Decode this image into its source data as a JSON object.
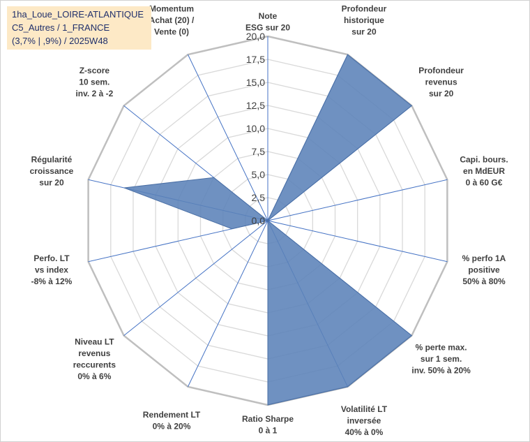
{
  "title_box": {
    "line1": "1ha_Loue_LOIRE-ATLANTIQUE",
    "line2": "C5_Autres / 1_FRANCE",
    "line3": "(3,7% | ,9%) / 2025W48"
  },
  "colors": {
    "series_fill": "#5b82b8",
    "series_stroke": "#4a6fa5",
    "spoke": "#4472c4",
    "grid": "#d9d9d9",
    "outer_ring": "#bfbfbf",
    "title_bg": "#fde9c6",
    "title_text": "#1f2f6b"
  },
  "chart_data": {
    "type": "radar",
    "rmin": 0,
    "rmax": 20,
    "ticks": [
      "0,0",
      "2,5",
      "5,0",
      "7,5",
      "10,0",
      "12,5",
      "15,0",
      "17,5",
      "20,0"
    ],
    "tick_values": [
      0,
      2.5,
      5,
      7.5,
      10,
      12.5,
      15,
      17.5,
      20
    ],
    "axes": [
      {
        "lines": [
          "Note",
          "ESG sur 20"
        ],
        "value": 0
      },
      {
        "lines": [
          "Profondeur",
          "historique",
          "sur 20"
        ],
        "value": 20
      },
      {
        "lines": [
          "Profondeur",
          "revenus",
          "sur 20"
        ],
        "value": 20
      },
      {
        "lines": [
          "Capi. bours.",
          "en MdEUR",
          "0 à 60 G€"
        ],
        "value": 0
      },
      {
        "lines": [
          "% perfo 1A",
          "positive",
          "50% à 80%"
        ],
        "value": 0
      },
      {
        "lines": [
          "% perte max.",
          "sur 1 sem.",
          "inv. 50% à 20%"
        ],
        "value": 20
      },
      {
        "lines": [
          "Volatilité LT",
          "inversée",
          "40% à 0%"
        ],
        "value": 20
      },
      {
        "lines": [
          "Ratio Sharpe",
          "0 à 1"
        ],
        "value": 20
      },
      {
        "lines": [
          "Rendement LT",
          "0% à 20%"
        ],
        "value": 0
      },
      {
        "lines": [
          "Niveau LT",
          "revenus",
          "reccurents",
          "0% à 6%"
        ],
        "value": 0
      },
      {
        "lines": [
          "Perfo. LT",
          "vs index",
          "-8% à 12%"
        ],
        "value": 4
      },
      {
        "lines": [
          "Régularité",
          "croissance",
          "sur 20"
        ],
        "value": 16
      },
      {
        "lines": [
          "Z-score",
          "10 sem.",
          "inv. 2 à -2"
        ],
        "value": 7.5
      },
      {
        "lines": [
          "Momentum",
          "Achat (20) /",
          "Vente (0)"
        ],
        "value": 0
      }
    ]
  }
}
